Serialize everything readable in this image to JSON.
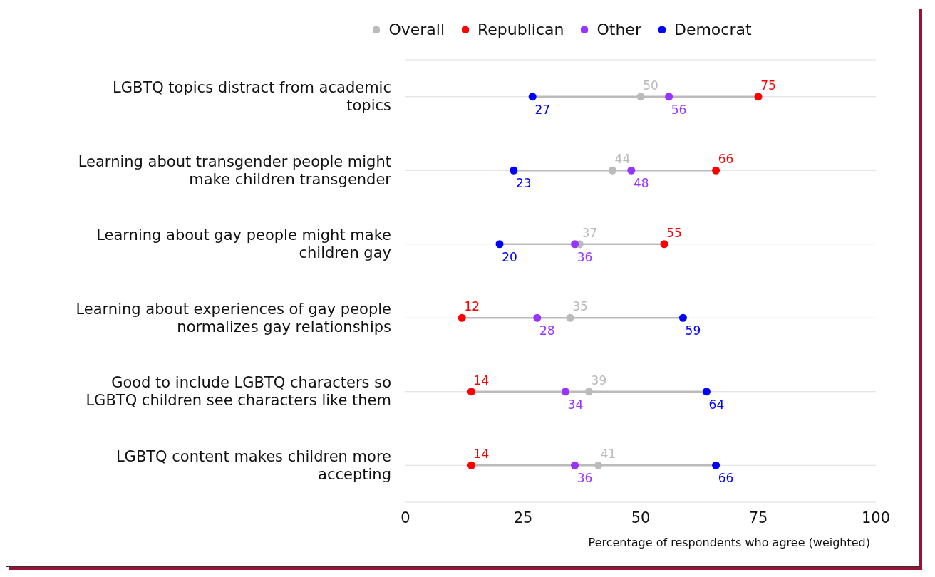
{
  "chart_data": {
    "type": "scatter",
    "orientation": "horizontal",
    "xlabel": "Percentage of respondents who agree (weighted)",
    "categories": [
      "LGBTQ topics distract from academic topics",
      "Learning about transgender people might make children transgender",
      "Learning about gay people might make children gay",
      "Learning about experiences of gay people normalizes gay relationships",
      "Good to include LGBTQ characters so LGBTQ children see characters like them",
      "LGBTQ content makes children more accepting"
    ],
    "series": [
      {
        "name": "Overall",
        "color": "#bbbbbb",
        "values": [
          50,
          44,
          37,
          35,
          39,
          41
        ]
      },
      {
        "name": "Republican",
        "color": "#ff0000",
        "values": [
          75,
          66,
          55,
          12,
          14,
          14
        ]
      },
      {
        "name": "Other",
        "color": "#9933ff",
        "values": [
          56,
          48,
          36,
          28,
          34,
          36
        ]
      },
      {
        "name": "Democrat",
        "color": "#0000ff",
        "values": [
          27,
          23,
          20,
          59,
          64,
          66
        ]
      }
    ],
    "xlim": [
      0,
      100
    ],
    "xticks": [
      0,
      25,
      50,
      75,
      100
    ],
    "grid": "y",
    "legend": "top",
    "marker": "circle",
    "data_labels": true
  }
}
